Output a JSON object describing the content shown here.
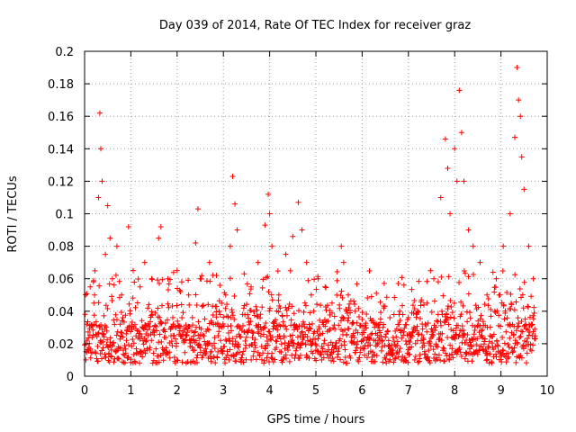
{
  "chart_data": {
    "type": "scatter",
    "title": "Day 039 of 2014, Rate Of TEC Index for receiver graz",
    "xlabel": "GPS time / hours",
    "ylabel": "ROTI / TECUs",
    "xlim": [
      0,
      10
    ],
    "ylim": [
      0,
      0.2
    ],
    "x_ticks": [
      0,
      1,
      2,
      3,
      4,
      5,
      6,
      7,
      8,
      9,
      10
    ],
    "y_ticks": [
      0,
      0.02,
      0.04,
      0.06,
      0.08,
      0.1,
      0.12,
      0.14,
      0.16,
      0.18,
      0.2
    ],
    "x_tick_labels": [
      "0",
      "1",
      "2",
      "3",
      "4",
      "5",
      "6",
      "7",
      "8",
      "9",
      "10"
    ],
    "y_tick_labels": [
      "0",
      "0.02",
      "0.04",
      "0.06",
      "0.08",
      "0.1",
      "0.12",
      "0.14",
      "0.16",
      "0.18",
      "0.2"
    ],
    "grid": true,
    "marker": "+",
    "color": "#ff0000",
    "x_data_range": [
      0,
      9.75
    ],
    "series": [
      {
        "name": "ROTI",
        "x": [
          0.05,
          0.12,
          0.2,
          0.3,
          0.33,
          0.35,
          0.38,
          0.45,
          0.5,
          0.55,
          0.6,
          0.7,
          0.8,
          0.95,
          1.05,
          1.2,
          1.3,
          1.45,
          1.6,
          1.65,
          1.8,
          2.0,
          2.1,
          2.25,
          2.4,
          2.45,
          2.5,
          2.7,
          2.85,
          3.05,
          3.15,
          3.2,
          3.25,
          3.3,
          3.45,
          3.6,
          3.75,
          3.9,
          3.97,
          4.0,
          4.05,
          4.2,
          4.35,
          4.5,
          4.62,
          4.7,
          4.8,
          4.9,
          5.05,
          5.2,
          5.35,
          5.55,
          5.6,
          5.7,
          5.85,
          6.0,
          6.2,
          6.4,
          6.6,
          6.8,
          7.0,
          7.2,
          7.4,
          7.55,
          7.7,
          7.8,
          7.85,
          7.9,
          8.0,
          8.05,
          8.1,
          8.15,
          8.2,
          8.3,
          8.4,
          8.55,
          8.7,
          8.9,
          9.05,
          9.2,
          9.3,
          9.35,
          9.38,
          9.42,
          9.45,
          9.5,
          9.6,
          9.7
        ],
        "y": [
          0.032,
          0.055,
          0.045,
          0.11,
          0.162,
          0.14,
          0.12,
          0.075,
          0.105,
          0.085,
          0.06,
          0.08,
          0.05,
          0.092,
          0.065,
          0.055,
          0.07,
          0.06,
          0.085,
          0.092,
          0.06,
          0.065,
          0.058,
          0.05,
          0.082,
          0.103,
          0.06,
          0.07,
          0.062,
          0.05,
          0.08,
          0.123,
          0.106,
          0.09,
          0.063,
          0.055,
          0.07,
          0.093,
          0.112,
          0.1,
          0.08,
          0.05,
          0.075,
          0.086,
          0.107,
          0.09,
          0.07,
          0.05,
          0.06,
          0.055,
          0.045,
          0.08,
          0.07,
          0.05,
          0.04,
          0.035,
          0.034,
          0.033,
          0.036,
          0.038,
          0.036,
          0.04,
          0.045,
          0.06,
          0.11,
          0.146,
          0.128,
          0.1,
          0.14,
          0.12,
          0.176,
          0.15,
          0.12,
          0.09,
          0.08,
          0.07,
          0.05,
          0.06,
          0.08,
          0.1,
          0.147,
          0.19,
          0.17,
          0.16,
          0.135,
          0.115,
          0.08,
          0.06
        ]
      }
    ]
  }
}
